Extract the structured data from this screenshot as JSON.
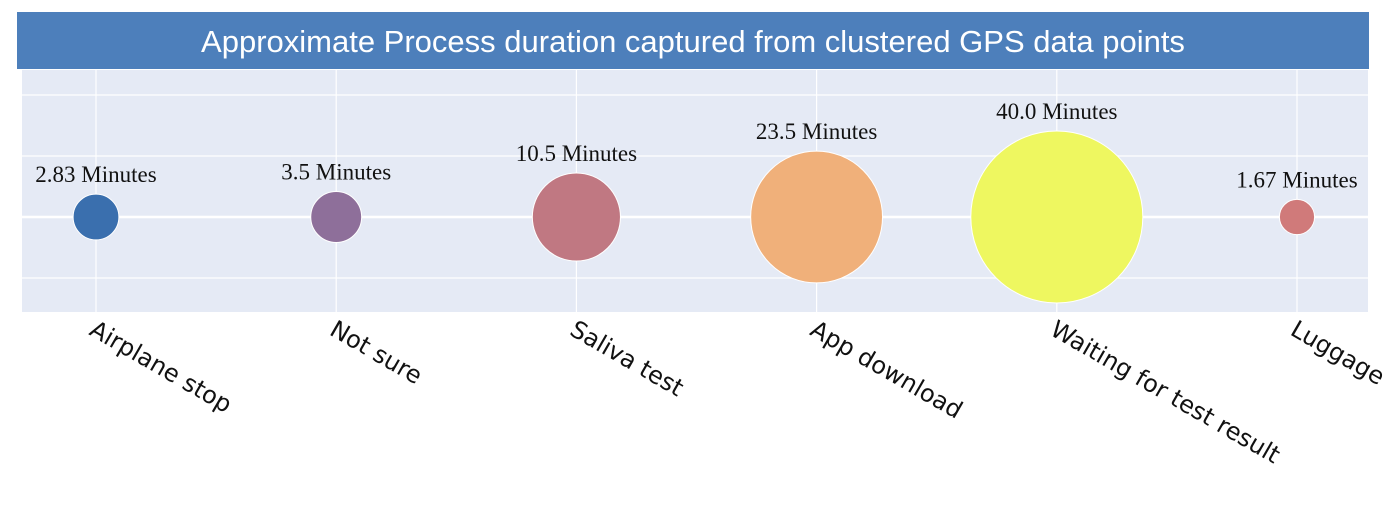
{
  "chart_data": {
    "type": "scatter",
    "title": "Approximate Process duration captured from clustered GPS data points",
    "categories": [
      "Airplane stop",
      "Not sure",
      "Saliva test",
      "App download",
      "Waiting for test result",
      "Luggage"
    ],
    "values": [
      2.83,
      3.5,
      10.5,
      23.5,
      40.0,
      1.67
    ],
    "labels": [
      "2.83 Minutes",
      "3.5 Minutes",
      "10.5 Minutes",
      "23.5 Minutes",
      "40.0 Minutes",
      "1.67 Minutes"
    ],
    "colors": [
      "#3a6fae",
      "#8e6f9a",
      "#c07882",
      "#f0b07a",
      "#eef760",
      "#d07a7a"
    ],
    "xlabel": "",
    "ylabel": "",
    "grid": true,
    "legend": "none",
    "title_bar_color": "#4d7fbb",
    "plot_background": "#e5eaf5"
  }
}
